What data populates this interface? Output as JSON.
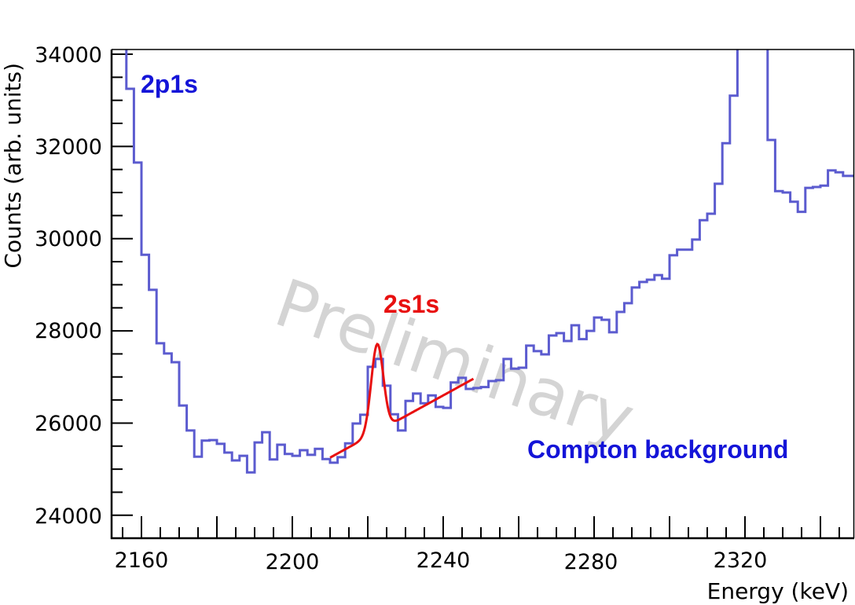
{
  "chart_data": {
    "type": "bar",
    "subtype": "step-histogram",
    "title": "",
    "xlabel": "Energy (keV)",
    "ylabel": "Counts (arb. units)",
    "xlim": [
      2152,
      2349
    ],
    "ylim": [
      23500,
      34100
    ],
    "xticks": [
      2160,
      2200,
      2240,
      2280,
      2320
    ],
    "yticks": [
      24000,
      26000,
      28000,
      30000,
      32000,
      34000
    ],
    "x_minor_step": 5,
    "y_minor_step": 500,
    "grid": false,
    "legend": null,
    "bin_width_keV": 2,
    "bin_start_keV": 2152,
    "series": [
      {
        "name": "Spectrum",
        "color": "#5555cc",
        "values": [
          34200,
          34200,
          33250,
          31650,
          29650,
          28890,
          27730,
          27510,
          27320,
          26380,
          25840,
          25270,
          25620,
          25630,
          25550,
          25360,
          25190,
          25290,
          24930,
          25580,
          25800,
          25210,
          25530,
          25330,
          25290,
          25410,
          25310,
          25440,
          25220,
          25140,
          25260,
          25560,
          25990,
          26180,
          27220,
          27390,
          26810,
          26190,
          25840,
          26480,
          26640,
          26430,
          26600,
          26350,
          26330,
          26880,
          26980,
          26740,
          26760,
          26780,
          26910,
          26930,
          27390,
          27180,
          27200,
          27680,
          27560,
          27490,
          27900,
          27950,
          27780,
          28120,
          27820,
          28000,
          28290,
          28240,
          27970,
          28410,
          28600,
          28940,
          29060,
          29110,
          29210,
          29130,
          29640,
          29760,
          29760,
          29980,
          30400,
          30540,
          31190,
          32070,
          33100,
          34200,
          34200,
          34200,
          34200,
          32140,
          31030,
          31000,
          30800,
          30580,
          31100,
          31120,
          31150,
          31480,
          31440,
          31360,
          31360
        ]
      },
      {
        "name": "2s1s fit",
        "type": "line",
        "color": "#e81010",
        "x_range": [
          2210,
          2248
        ],
        "model": "gaussian + linear background",
        "peak_center_keV": 2222.5,
        "peak_sigma_keV": 1.6,
        "peak_amplitude": 1900,
        "background_at_2210": 25250,
        "background_slope_per_keV": 45
      }
    ],
    "annotations": [
      {
        "text": "2p1s",
        "x_keV": 2154,
        "y": 33400,
        "color": "#1010dd"
      },
      {
        "text": "2s1s",
        "x_keV": 2219,
        "y": 27850,
        "color": "#e81010"
      },
      {
        "text": "Compton background",
        "x_keV": 2268,
        "y": 25400,
        "color": "#1010dd"
      },
      {
        "text": "Preliminary",
        "type": "watermark",
        "color": "#d4d4d4"
      }
    ]
  },
  "labels": {
    "xlabel": "Energy (keV)",
    "ylabel": "Counts (arb. units)",
    "anno_2p1s": "2p1s",
    "anno_2s1s": "2s1s",
    "anno_compton": "Compton background",
    "watermark": "Preliminary",
    "xtick_2160": "2160",
    "xtick_2200": "2200",
    "xtick_2240": "2240",
    "xtick_2280": "2280",
    "xtick_2320": "2320",
    "ytick_24000": "24000",
    "ytick_26000": "26000",
    "ytick_28000": "28000",
    "ytick_30000": "30000",
    "ytick_32000": "32000",
    "ytick_34000": "34000"
  }
}
